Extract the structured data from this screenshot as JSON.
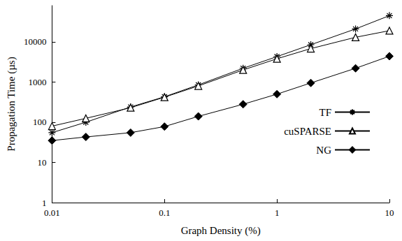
{
  "chart_data": {
    "type": "line",
    "x_label": "Graph Density (%)",
    "y_label": "Propagation Time (µs)",
    "log": true,
    "grid": false,
    "legend": "lower right",
    "x": [
      0.01,
      0.02,
      0.05,
      0.1,
      0.2,
      0.5,
      1,
      2,
      5,
      10
    ],
    "xlim": [
      0.01,
      10
    ],
    "xticks": [
      0.01,
      0.1,
      1,
      10
    ],
    "ylim": [
      1,
      80000
    ],
    "yticks": [
      1,
      10,
      100,
      1000,
      10000
    ],
    "series": [
      {
        "name": "TF",
        "color": "#000000",
        "marker": "asterisk",
        "values": [
          55,
          100,
          240,
          430,
          850,
          2200,
          4300,
          8500,
          21000,
          45000
        ]
      },
      {
        "name": "cuSPARSE",
        "color": "#000000",
        "marker": "triangle",
        "values": [
          80,
          125,
          230,
          420,
          800,
          2000,
          3800,
          6800,
          13000,
          19000
        ]
      },
      {
        "name": "NG",
        "color": "#000000",
        "marker": "diamond",
        "values": [
          35,
          43,
          55,
          78,
          140,
          280,
          500,
          950,
          2200,
          4400
        ]
      }
    ]
  }
}
